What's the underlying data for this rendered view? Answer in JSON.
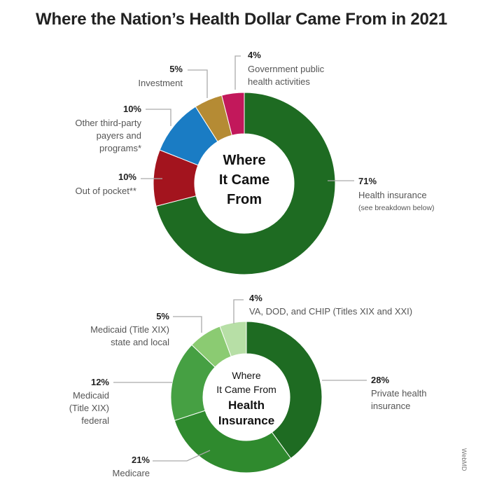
{
  "title": "Where the Nation’s Health Dollar Came From in 2021",
  "credit": "WebMD",
  "chart_data": [
    {
      "type": "pie",
      "donut": true,
      "center_text": [
        "Where",
        "It Came",
        "From"
      ],
      "slices": [
        {
          "label": "Health insurance",
          "value": 71,
          "pct_text": "71%",
          "note": "(see breakdown below)",
          "color": "#1e6b22"
        },
        {
          "label": "Out of pocket**",
          "value": 10,
          "pct_text": "10%",
          "color": "#a3141e"
        },
        {
          "label": "Other third-party payers and programs*",
          "label_lines": [
            "Other third-party",
            "payers and",
            "programs*"
          ],
          "value": 10,
          "pct_text": "10%",
          "color": "#1a7cc4"
        },
        {
          "label": "Investment",
          "value": 5,
          "pct_text": "5%",
          "color": "#b58b34"
        },
        {
          "label": "Government public health activities",
          "label_lines": [
            "Government public",
            "health activities"
          ],
          "value": 4,
          "pct_text": "4%",
          "color": "#c2185b"
        }
      ]
    },
    {
      "type": "pie",
      "donut": true,
      "center_text": [
        "Where",
        "It Came From",
        "Health",
        "Insurance"
      ],
      "slices": [
        {
          "label": "Private health insurance",
          "label_lines": [
            "Private health",
            "insurance"
          ],
          "value": 28,
          "pct_text": "28%",
          "color": "#1e6b22"
        },
        {
          "label": "Medicare",
          "value": 21,
          "pct_text": "21%",
          "color": "#2f8a2e"
        },
        {
          "label": "Medicaid (Title XIX) federal",
          "label_lines": [
            "Medicaid",
            "(Title XIX)",
            "federal"
          ],
          "value": 12,
          "pct_text": "12%",
          "color": "#46a043"
        },
        {
          "label": "Medicaid (Title XIX) state and local",
          "label_lines": [
            "Medicaid (Title XIX)",
            "state and local"
          ],
          "value": 5,
          "pct_text": "5%",
          "color": "#8bcb72"
        },
        {
          "label": "VA, DOD, and CHIP (Titles XIX and XXI)",
          "value": 4,
          "pct_text": "4%",
          "color": "#b7dfa6"
        }
      ]
    }
  ]
}
